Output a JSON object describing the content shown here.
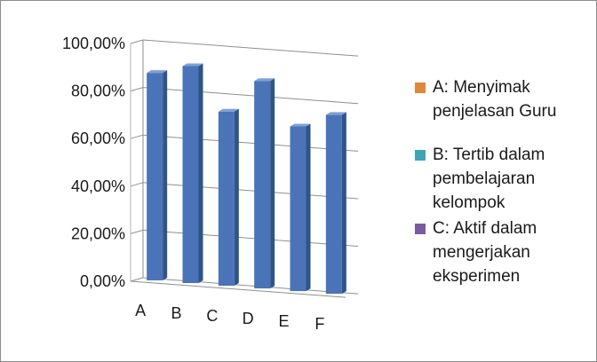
{
  "chart_data": {
    "type": "bar",
    "title": "",
    "xlabel": "",
    "ylabel": "",
    "categories": [
      "A",
      "B",
      "C",
      "D",
      "E",
      "F"
    ],
    "series": [
      {
        "values": [
          88,
          92,
          74,
          88,
          70,
          76
        ]
      }
    ],
    "ylim": [
      0,
      100
    ],
    "y_ticks": [
      "0,00%",
      "20,00%",
      "40,00%",
      "60,00%",
      "80,00%",
      "100,00%"
    ],
    "grid": true,
    "style": "3d-column",
    "bar_color": "#4a74b7",
    "legend_position": "right",
    "legend": [
      {
        "label": "A: Menyimak penjelasan Guru",
        "color": "#e0883a"
      },
      {
        "label": "B: Tertib dalam pembelajaran kelompok",
        "color": "#3fa5b6"
      },
      {
        "label": "C: Aktif dalam mengerjakan eksperimen",
        "color": "#7a5aa0"
      }
    ]
  }
}
